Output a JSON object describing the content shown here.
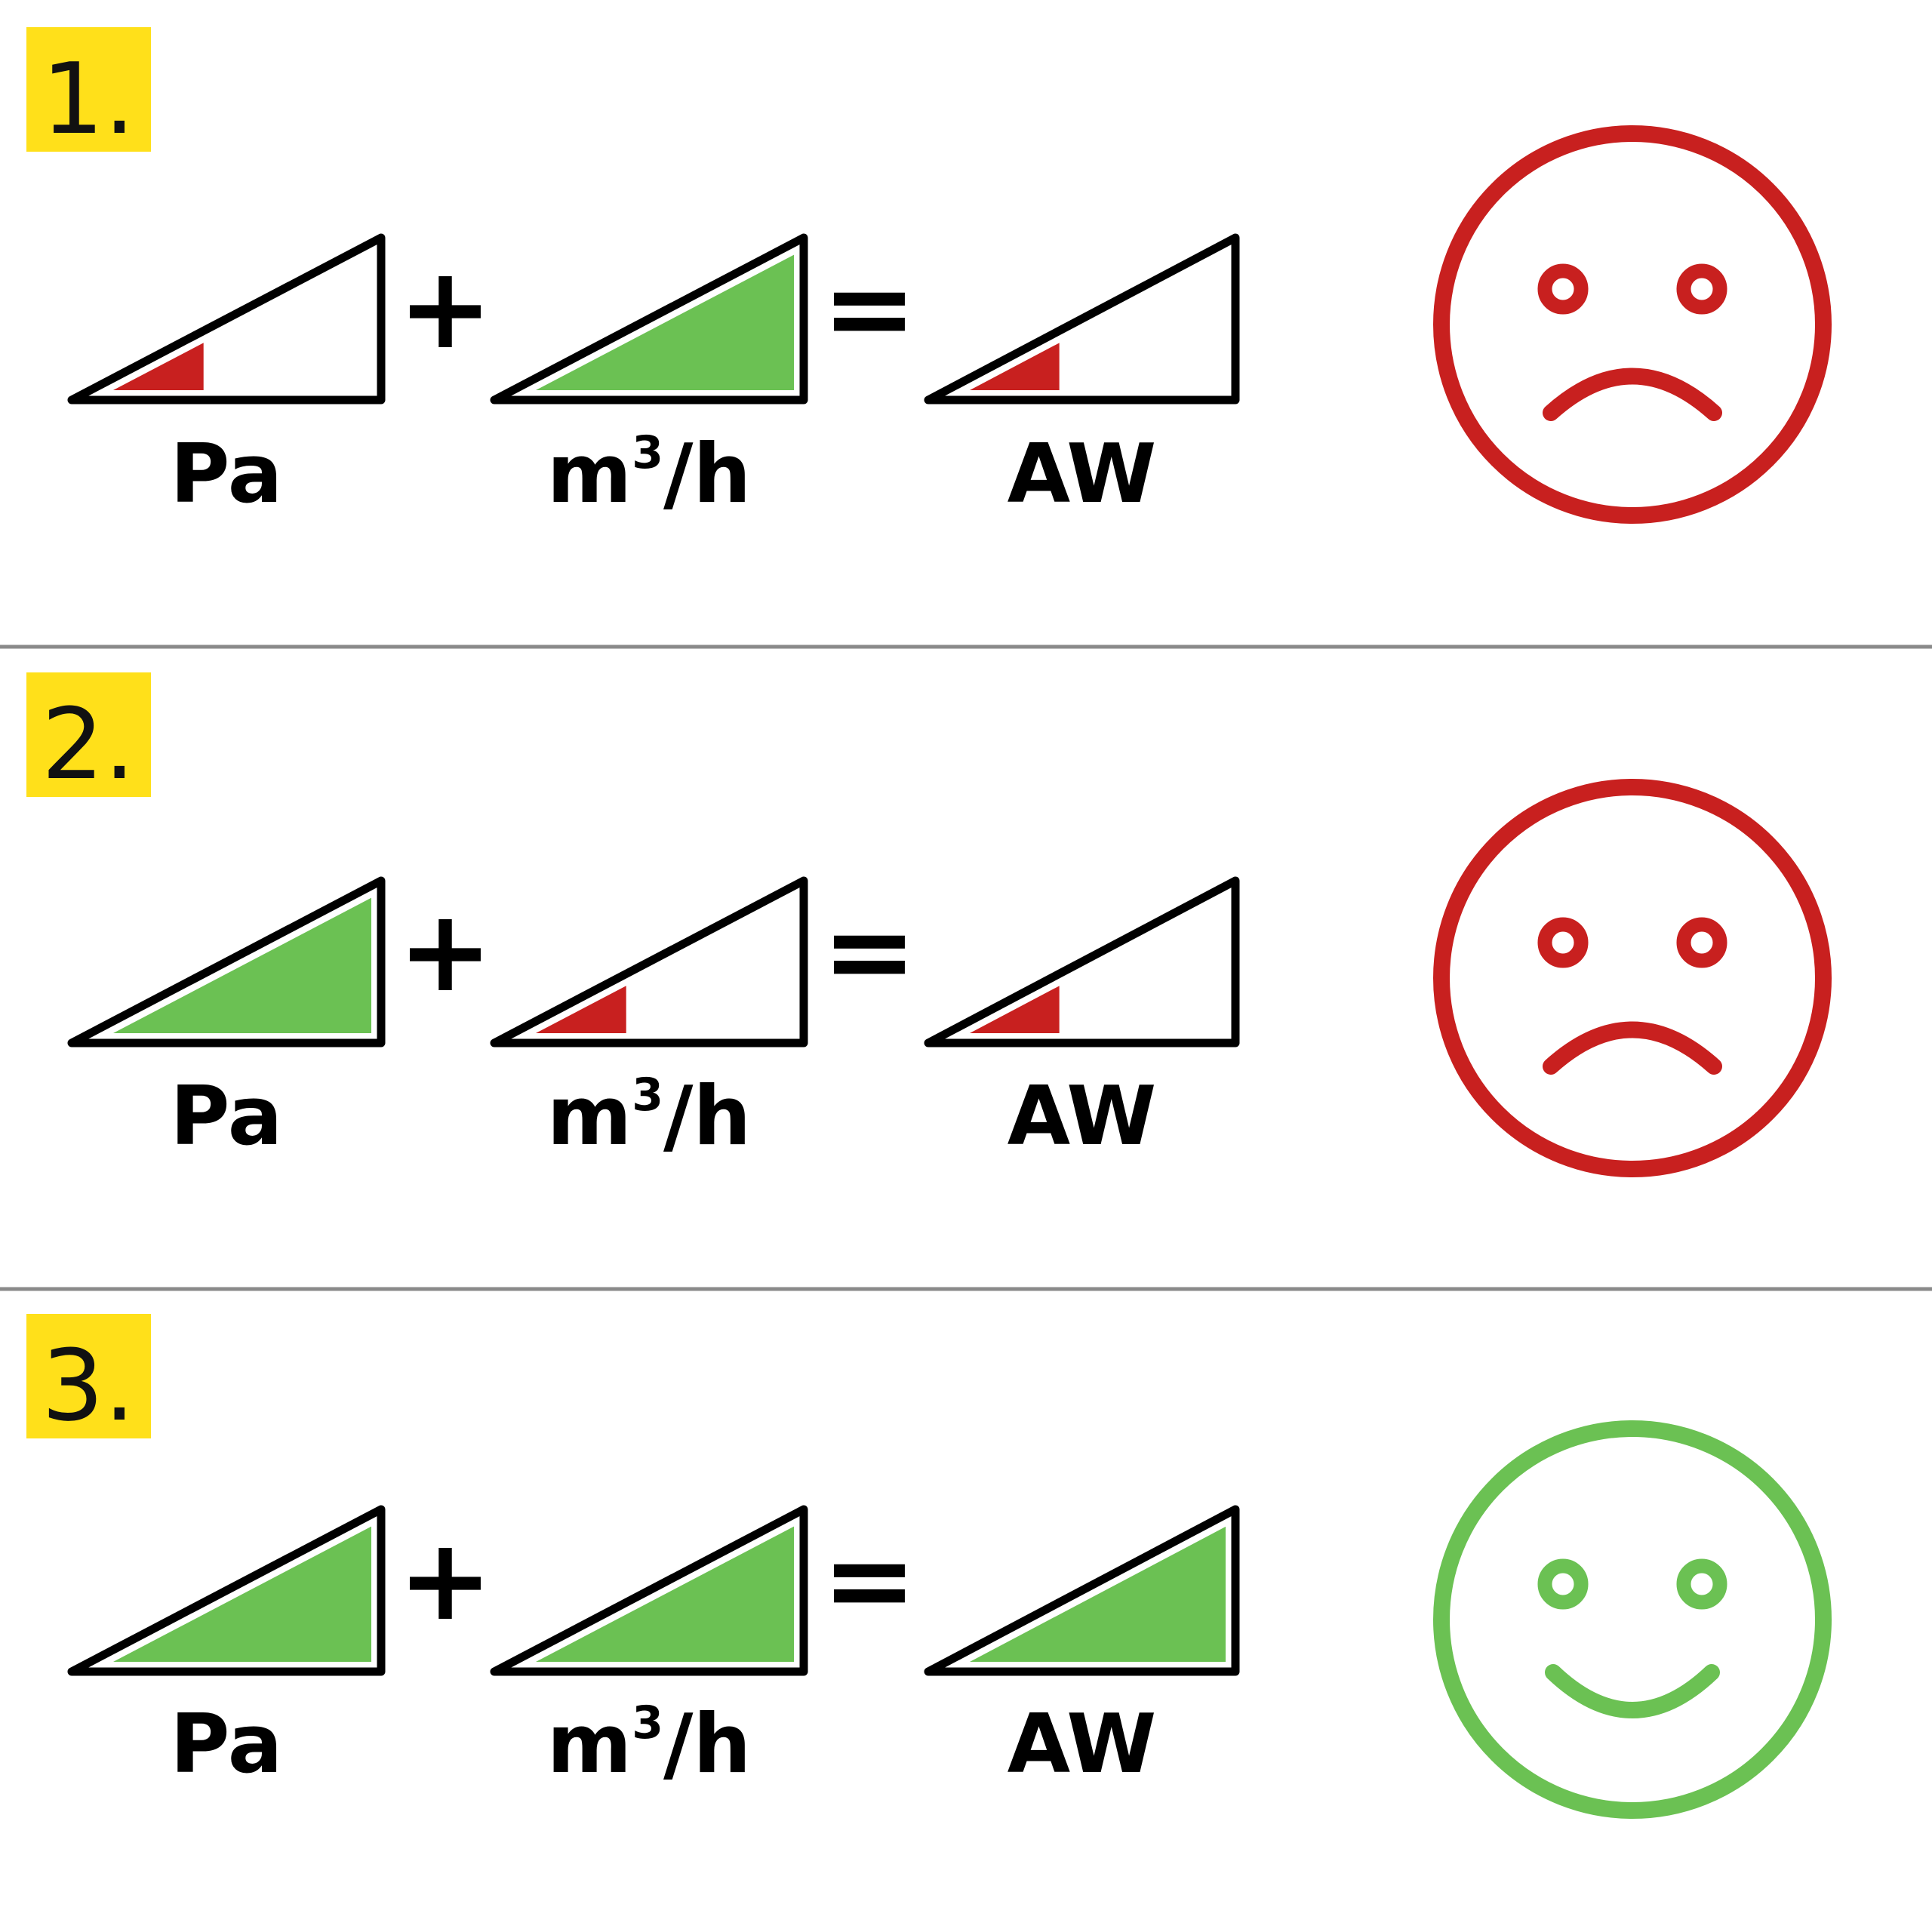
{
  "colors": {
    "badge": "#ffe01a",
    "bad": "#c8201f",
    "good": "#6bc153",
    "stroke": "#000000",
    "divider": "#8a8a8a"
  },
  "operators": {
    "plus": "+",
    "equals": "="
  },
  "rows": [
    {
      "number": "1.",
      "terms": [
        {
          "label": "Pa",
          "superscript": "",
          "label_suffix": "",
          "level": 0.35,
          "status": "bad"
        },
        {
          "label": "m",
          "superscript": "3",
          "label_suffix": "/h",
          "level": 1.0,
          "status": "good"
        },
        {
          "label": "AW",
          "superscript": "",
          "label_suffix": "",
          "level": 0.35,
          "status": "bad"
        }
      ],
      "face": {
        "mood": "sad",
        "status": "bad",
        "icon": "sad-face-icon"
      }
    },
    {
      "number": "2.",
      "terms": [
        {
          "label": "Pa",
          "superscript": "",
          "label_suffix": "",
          "level": 1.0,
          "status": "good"
        },
        {
          "label": "m",
          "superscript": "3",
          "label_suffix": "/h",
          "level": 0.35,
          "status": "bad"
        },
        {
          "label": "AW",
          "superscript": "",
          "label_suffix": "",
          "level": 0.35,
          "status": "bad"
        }
      ],
      "face": {
        "mood": "sad",
        "status": "bad",
        "icon": "sad-face-icon"
      }
    },
    {
      "number": "3.",
      "terms": [
        {
          "label": "Pa",
          "superscript": "",
          "label_suffix": "",
          "level": 1.0,
          "status": "good"
        },
        {
          "label": "m",
          "superscript": "3",
          "label_suffix": "/h",
          "level": 1.0,
          "status": "good"
        },
        {
          "label": "AW",
          "superscript": "",
          "label_suffix": "",
          "level": 1.0,
          "status": "good"
        }
      ],
      "face": {
        "mood": "happy",
        "status": "good",
        "icon": "happy-face-icon"
      }
    }
  ]
}
